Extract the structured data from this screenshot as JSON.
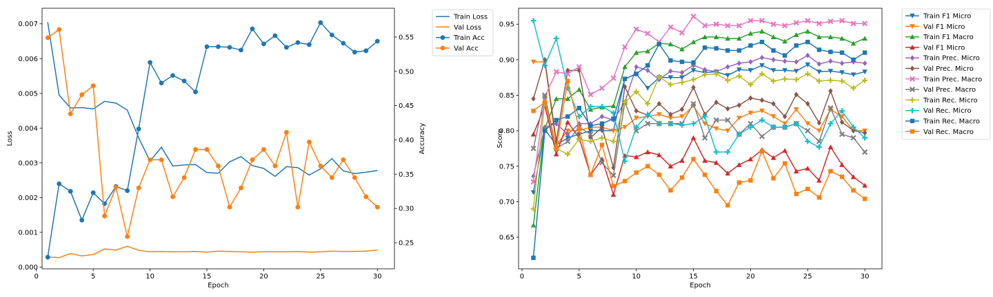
{
  "chart_data": [
    {
      "type": "line",
      "x": [
        1,
        2,
        3,
        4,
        5,
        6,
        7,
        8,
        9,
        10,
        11,
        12,
        13,
        14,
        15,
        16,
        17,
        18,
        19,
        20,
        21,
        22,
        23,
        24,
        25,
        26,
        27,
        28,
        29,
        30
      ],
      "xlabel": "Epoch",
      "ylabel": "Loss",
      "y2label": "Accuracy",
      "xlim": [
        0.5,
        31.5
      ],
      "ylim": [
        -5e-05,
        0.00745
      ],
      "y2lim": [
        0.212,
        0.592
      ],
      "xticks": [
        "0",
        "5",
        "10",
        "15",
        "20",
        "25",
        "30"
      ],
      "yticks": [
        "0.000",
        "0.001",
        "0.002",
        "0.003",
        "0.004",
        "0.005",
        "0.006",
        "0.007"
      ],
      "y2ticks": [
        "0.25",
        "0.30",
        "0.35",
        "0.40",
        "0.45",
        "0.50",
        "0.55"
      ],
      "legend_position": "outside-right",
      "series": [
        {
          "name": "Train Loss",
          "axis": "left",
          "marker": "none",
          "color": "#1f77b4",
          "values": [
            0.00705,
            0.00495,
            0.00458,
            0.00459,
            0.00455,
            0.00477,
            0.00472,
            0.00452,
            0.00372,
            0.00305,
            0.00345,
            0.00291,
            0.00294,
            0.00295,
            0.00272,
            0.0027,
            0.00303,
            0.00318,
            0.00292,
            0.00284,
            0.00261,
            0.00289,
            0.00286,
            0.00265,
            0.00283,
            0.00312,
            0.00277,
            0.00269,
            0.00273,
            0.00278
          ]
        },
        {
          "name": "Val Loss",
          "axis": "left",
          "marker": "none",
          "color": "#ff7f0e",
          "values": [
            0.00029,
            0.00027,
            0.00039,
            0.00032,
            0.00036,
            0.00052,
            0.00049,
            0.0006,
            0.00048,
            0.00044,
            0.00045,
            0.00044,
            0.00044,
            0.00045,
            0.00043,
            0.00046,
            0.00045,
            0.00044,
            0.00043,
            0.00044,
            0.00044,
            0.00044,
            0.00045,
            0.00043,
            0.00044,
            0.00046,
            0.00045,
            0.00045,
            0.00046,
            0.00049
          ]
        },
        {
          "name": "Train Acc",
          "axis": "right",
          "marker": "circle",
          "color": "#1f77b4",
          "values": [
            0.229,
            0.336,
            0.325,
            0.283,
            0.323,
            0.307,
            0.332,
            0.326,
            0.416,
            0.513,
            0.483,
            0.494,
            0.486,
            0.47,
            0.536,
            0.536,
            0.535,
            0.531,
            0.562,
            0.54,
            0.552,
            0.535,
            0.542,
            0.539,
            0.571,
            0.553,
            0.541,
            0.528,
            0.53,
            0.544
          ]
        },
        {
          "name": "Val Acc",
          "axis": "right",
          "marker": "circle",
          "color": "#ff7f0e",
          "values": [
            0.549,
            0.561,
            0.438,
            0.466,
            0.479,
            0.289,
            0.331,
            0.259,
            0.33,
            0.371,
            0.371,
            0.317,
            0.345,
            0.386,
            0.386,
            0.362,
            0.302,
            0.33,
            0.371,
            0.386,
            0.362,
            0.411,
            0.302,
            0.397,
            0.362,
            0.345,
            0.371,
            0.345,
            0.317,
            0.302
          ]
        }
      ]
    },
    {
      "type": "line",
      "x": [
        1,
        2,
        3,
        4,
        5,
        6,
        7,
        8,
        9,
        10,
        11,
        12,
        13,
        14,
        15,
        16,
        17,
        18,
        19,
        20,
        21,
        22,
        23,
        24,
        25,
        26,
        27,
        28,
        29,
        30
      ],
      "xlabel": "Epoch",
      "ylabel": "Score",
      "xlim": [
        -0.3,
        31.5
      ],
      "ylim": [
        0.6055,
        0.9725
      ],
      "xticks": [
        "0",
        "5",
        "10",
        "15",
        "20",
        "25",
        "30"
      ],
      "yticks": [
        "0.65",
        "0.70",
        "0.75",
        "0.80",
        "0.85",
        "0.90",
        "0.95"
      ],
      "legend_position": "outside-right",
      "series": [
        {
          "name": "Train F1 Micro",
          "marker": "triangle-down",
          "color": "#1f77b4",
          "values": [
            0.713,
            0.802,
            0.78,
            0.79,
            0.795,
            0.8,
            0.8,
            0.8,
            0.873,
            0.88,
            0.86,
            0.875,
            0.875,
            0.875,
            0.885,
            0.882,
            0.883,
            0.878,
            0.886,
            0.885,
            0.892,
            0.885,
            0.885,
            0.884,
            0.893,
            0.883,
            0.884,
            0.882,
            0.879,
            0.883
          ]
        },
        {
          "name": "Val F1 Micro",
          "marker": "triangle-down",
          "color": "#ff7f0e",
          "values": [
            0.897,
            0.897,
            0.78,
            0.8,
            0.8,
            0.805,
            0.805,
            0.8,
            0.805,
            0.818,
            0.82,
            0.823,
            0.818,
            0.82,
            0.835,
            0.81,
            0.803,
            0.8,
            0.818,
            0.825,
            0.828,
            0.82,
            0.81,
            0.83,
            0.81,
            0.8,
            0.83,
            0.82,
            0.8,
            0.8
          ]
        },
        {
          "name": "Train F1 Macro",
          "marker": "triangle-up",
          "color": "#2ca02c",
          "values": [
            0.667,
            0.803,
            0.845,
            0.845,
            0.858,
            0.83,
            0.833,
            0.835,
            0.89,
            0.91,
            0.912,
            0.923,
            0.922,
            0.915,
            0.925,
            0.932,
            0.932,
            0.93,
            0.93,
            0.937,
            0.94,
            0.932,
            0.926,
            0.935,
            0.94,
            0.932,
            0.932,
            0.93,
            0.923,
            0.93
          ]
        },
        {
          "name": "Val F1 Micro",
          "marker": "triangle-up",
          "color": "#d62728",
          "values": [
            0.795,
            0.835,
            0.767,
            0.812,
            0.79,
            0.738,
            0.76,
            0.71,
            0.765,
            0.763,
            0.77,
            0.766,
            0.75,
            0.758,
            0.79,
            0.758,
            0.755,
            0.74,
            0.752,
            0.76,
            0.773,
            0.762,
            0.772,
            0.743,
            0.747,
            0.73,
            0.777,
            0.752,
            0.735,
            0.723
          ]
        },
        {
          "name": "Train Prec. Micro",
          "marker": "diamond",
          "color": "#9467bd",
          "values": [
            0.736,
            0.805,
            0.81,
            0.795,
            0.81,
            0.81,
            0.82,
            0.815,
            0.84,
            0.89,
            0.885,
            0.872,
            0.884,
            0.882,
            0.892,
            0.886,
            0.883,
            0.89,
            0.895,
            0.897,
            0.903,
            0.9,
            0.898,
            0.897,
            0.906,
            0.894,
            0.898,
            0.895,
            0.897,
            0.895
          ]
        },
        {
          "name": "Val Prec. Micro",
          "marker": "diamond",
          "color": "#8c564b",
          "values": [
            0.845,
            0.9,
            0.785,
            0.885,
            0.885,
            0.79,
            0.805,
            0.748,
            0.862,
            0.828,
            0.822,
            0.838,
            0.823,
            0.83,
            0.861,
            0.823,
            0.84,
            0.831,
            0.836,
            0.846,
            0.843,
            0.838,
            0.82,
            0.851,
            0.838,
            0.811,
            0.856,
            0.812,
            0.8,
            0.797
          ]
        },
        {
          "name": "Train Prec. Macro",
          "marker": "x",
          "color": "#e377c2",
          "values": [
            0.728,
            0.848,
            0.883,
            0.88,
            0.89,
            0.851,
            0.86,
            0.874,
            0.918,
            0.943,
            0.937,
            0.925,
            0.946,
            0.938,
            0.961,
            0.948,
            0.95,
            0.948,
            0.948,
            0.955,
            0.955,
            0.95,
            0.948,
            0.952,
            0.955,
            0.951,
            0.954,
            0.955,
            0.951,
            0.951
          ]
        },
        {
          "name": "Val Prec. Macro",
          "marker": "x",
          "color": "#7f7f7f",
          "values": [
            0.775,
            0.85,
            0.775,
            0.785,
            0.805,
            0.795,
            0.755,
            0.737,
            0.84,
            0.8,
            0.81,
            0.81,
            0.81,
            0.81,
            0.838,
            0.79,
            0.815,
            0.815,
            0.795,
            0.81,
            0.792,
            0.805,
            0.805,
            0.81,
            0.8,
            0.785,
            0.832,
            0.795,
            0.79,
            0.77
          ]
        },
        {
          "name": "Train Rec. Micro",
          "marker": "plus",
          "color": "#bcbd22",
          "values": [
            0.69,
            0.84,
            0.775,
            0.767,
            0.788,
            0.785,
            0.79,
            0.785,
            0.84,
            0.855,
            0.838,
            0.876,
            0.865,
            0.868,
            0.872,
            0.879,
            0.88,
            0.871,
            0.877,
            0.865,
            0.88,
            0.87,
            0.873,
            0.872,
            0.88,
            0.87,
            0.871,
            0.87,
            0.86,
            0.871
          ]
        },
        {
          "name": "Val Rec. Micro",
          "marker": "plus",
          "color": "#17becf",
          "values": [
            0.955,
            0.892,
            0.93,
            0.86,
            0.82,
            0.834,
            0.834,
            0.825,
            0.757,
            0.805,
            0.823,
            0.81,
            0.81,
            0.808,
            0.81,
            0.82,
            0.77,
            0.77,
            0.795,
            0.805,
            0.815,
            0.805,
            0.805,
            0.81,
            0.785,
            0.777,
            0.81,
            0.828,
            0.805,
            0.79
          ]
        },
        {
          "name": "Train Rec. Macro",
          "marker": "square",
          "color": "#1f77b4",
          "values": [
            0.621,
            0.8,
            0.815,
            0.82,
            0.832,
            0.807,
            0.81,
            0.817,
            0.873,
            0.88,
            0.892,
            0.922,
            0.899,
            0.897,
            0.896,
            0.917,
            0.916,
            0.913,
            0.913,
            0.92,
            0.925,
            0.913,
            0.906,
            0.92,
            0.925,
            0.914,
            0.911,
            0.91,
            0.9,
            0.91
          ]
        },
        {
          "name": "Val Rec. Macro",
          "marker": "square",
          "color": "#ff7f0e",
          "values": [
            0.828,
            0.84,
            0.776,
            0.87,
            0.803,
            0.738,
            0.78,
            0.722,
            0.729,
            0.741,
            0.75,
            0.738,
            0.716,
            0.734,
            0.76,
            0.738,
            0.715,
            0.695,
            0.727,
            0.73,
            0.771,
            0.733,
            0.754,
            0.711,
            0.718,
            0.706,
            0.743,
            0.735,
            0.716,
            0.704
          ]
        }
      ]
    }
  ]
}
